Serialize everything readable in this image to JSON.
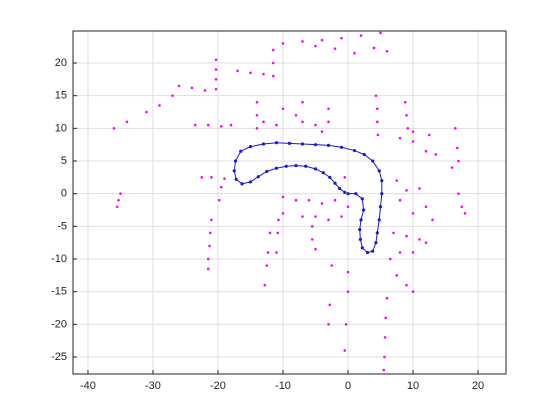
{
  "chart_data": {
    "type": "scatter",
    "xlim": [
      -42.3,
      24.3
    ],
    "ylim": [
      -27.6,
      24.9
    ],
    "xticks": [
      -40,
      -30,
      -20,
      -10,
      0,
      10,
      20
    ],
    "yticks": [
      -25,
      -20,
      -15,
      -10,
      -5,
      0,
      5,
      10,
      15,
      20
    ],
    "grid": true,
    "series": [
      {
        "color": "#ff00ff",
        "marker": "point",
        "x": [
          -10,
          -7,
          -4,
          -1,
          2,
          5,
          -5,
          -2,
          1,
          4,
          6,
          -20.3,
          -20.3,
          -20.3,
          -20.3,
          -26,
          -24,
          -22,
          -17,
          -15,
          -13,
          -11.5,
          -11.5,
          -11.5,
          -36,
          -34,
          -31,
          -29,
          -27,
          -23.5,
          -21.5,
          -19.5,
          -18,
          -14,
          -14,
          -14,
          -13,
          -11,
          -10,
          -8,
          -7,
          -7,
          -5,
          -4,
          -3,
          -3,
          4.3,
          4.5,
          4.5,
          4.6,
          8.8,
          9,
          9.2,
          8,
          10,
          12,
          13.5,
          10,
          12.5,
          16.5,
          16.8,
          17,
          16,
          7.5,
          9,
          11,
          8,
          10,
          12,
          13,
          17,
          17.5,
          18,
          7,
          9,
          11,
          12,
          8,
          10,
          6.5,
          7.5,
          9,
          10,
          6,
          5.8,
          5.7,
          5.6,
          5.5,
          0,
          0,
          -0.3,
          -0.5,
          -2.5,
          -2.8,
          -3,
          -10,
          -8,
          -6,
          -4,
          -2,
          -10,
          -7,
          -5,
          -3,
          -1,
          -5.5,
          -5.5,
          -5,
          -10.7,
          -10.8,
          -11,
          -12,
          -12.3,
          -12.5,
          -12.8,
          -22.5,
          -21,
          -19,
          -19.5,
          -19.8,
          -21,
          -21.2,
          -21.3,
          -21.5,
          -21.5,
          -35,
          -35.3,
          -35.5,
          -0.5,
          0
        ],
        "values": [
          23,
          23.3,
          23.5,
          23.8,
          24.2,
          24.6,
          22.6,
          22.2,
          21.5,
          22.3,
          21.8,
          20.5,
          19,
          17.5,
          16,
          16.5,
          16.2,
          15.8,
          18.8,
          18.5,
          18.3,
          18,
          20,
          22,
          10,
          11,
          12.5,
          13.5,
          15,
          10.5,
          10.5,
          10.3,
          10.5,
          14,
          12,
          10,
          11,
          10.5,
          13,
          12,
          14,
          11,
          10.5,
          9.5,
          13,
          11,
          15,
          13,
          11,
          9,
          14,
          12,
          10,
          8.5,
          8,
          6.5,
          6,
          9.5,
          9,
          10,
          7,
          5,
          4,
          2,
          0.5,
          0.8,
          -1,
          -3,
          -2,
          -4,
          0,
          -2,
          -3,
          -6,
          -6.5,
          -7,
          -7.5,
          -9,
          -9,
          -10,
          -12.5,
          -14,
          -15,
          -16,
          -19,
          -22,
          -25,
          -27,
          -12,
          -15,
          -20,
          -24,
          -11,
          -17,
          -20,
          -0.5,
          -1,
          -1,
          -1.5,
          -1,
          -3,
          -3.5,
          -3.5,
          -4,
          -3.5,
          -5,
          -7,
          -8.5,
          -4,
          -6,
          -9,
          -6,
          -9,
          -11,
          -14,
          2.5,
          2.5,
          2.3,
          1,
          -1,
          -4,
          -6,
          -8,
          -10,
          -11.5,
          0,
          -1,
          -2,
          2.5,
          -2
        ]
      },
      {
        "color": "#1a1ad6",
        "marker": "dot",
        "line": true,
        "x": [
          0,
          1.2,
          2.2,
          2.4,
          2,
          1.8,
          1.9,
          2.2,
          3,
          3.8,
          4.3,
          4.5,
          4.8,
          5,
          5.2,
          5.2,
          4.8,
          3.8,
          2.5,
          1,
          -1,
          -3,
          -5,
          -7,
          -9,
          -11,
          -13,
          -15,
          -16.5,
          -17.3,
          -17.5,
          -17.2,
          -16.3,
          -15,
          -13.8,
          -12.5,
          -11,
          -9.5,
          -8,
          -6.5,
          -5,
          -3.8,
          -2.8,
          -2,
          -1.3,
          -0.5
        ],
        "values": [
          0,
          0,
          -0.8,
          -2.5,
          -4,
          -5.5,
          -7,
          -8.3,
          -9,
          -8.8,
          -7.5,
          -6,
          -4,
          -2,
          0,
          2,
          3.5,
          5,
          6,
          6.6,
          7.1,
          7.4,
          7.5,
          7.6,
          7.7,
          7.8,
          7.6,
          7.2,
          6.5,
          5,
          3.5,
          2.2,
          1.5,
          1.8,
          2.6,
          3.4,
          3.9,
          4.2,
          4.3,
          4.2,
          3.8,
          3.2,
          2.5,
          1.6,
          0.8,
          0.2
        ]
      }
    ]
  }
}
